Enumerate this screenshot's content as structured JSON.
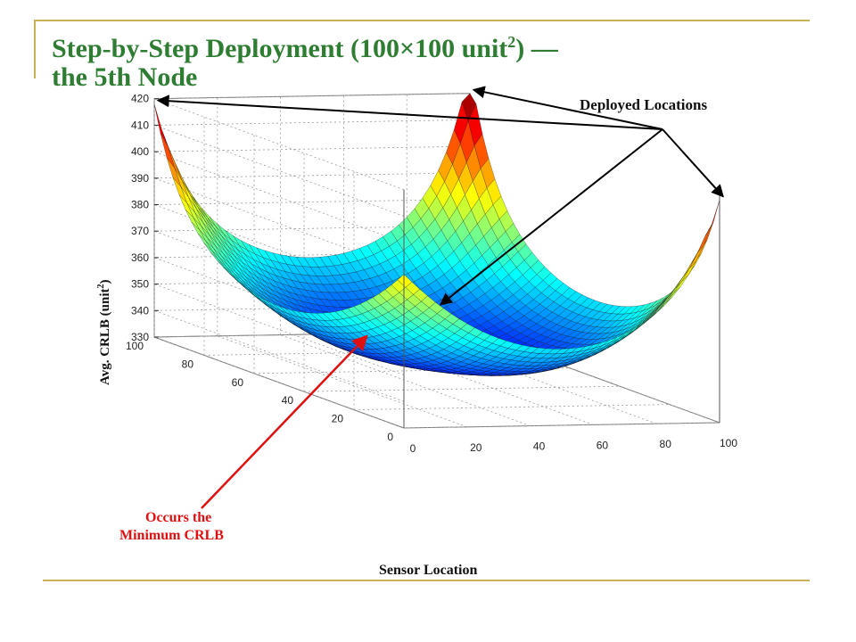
{
  "slide": {
    "title_line1": "Step-by-Step Deployment (100×100 unit",
    "title_sup": "2",
    "title_line1_end": ") —",
    "title_line2": "the 5th Node"
  },
  "annotations": {
    "deployed": "Deployed Locations",
    "minimum_line1": "Occurs the",
    "minimum_line2": "Minimum CRLB"
  },
  "colors": {
    "title": "#2e7d32",
    "arrow_black": "#000000",
    "arrow_red": "#e01010",
    "minimum_text": "#e01010",
    "rule": "#c9b15a"
  },
  "chart_data": {
    "type": "surface3d",
    "title": "",
    "xlabel": "Sensor Location",
    "ylabel": "",
    "zlabel_main": "Avg. CRLB (unit",
    "zlabel_sup": "2",
    "zlabel_end": ")",
    "xlim": [
      0,
      100
    ],
    "ylim": [
      0,
      100
    ],
    "zlim": [
      330,
      420
    ],
    "x_ticks": [
      "0",
      "20",
      "40",
      "60",
      "80",
      "100"
    ],
    "y_ticks": [
      "0",
      "20",
      "40",
      "60",
      "80",
      "100"
    ],
    "z_ticks": [
      "330",
      "340",
      "350",
      "360",
      "370",
      "380",
      "390",
      "400",
      "410",
      "420"
    ],
    "grid": true,
    "colormap": "jet",
    "deployed_peaks": [
      {
        "x": 0,
        "y": 100,
        "z": 408
      },
      {
        "x": 100,
        "y": 100,
        "z": 420
      },
      {
        "x": 100,
        "y": 0,
        "z": 404
      },
      {
        "x": 50,
        "y": 50,
        "z": 396
      }
    ],
    "base_value": 333,
    "corner_value": 388,
    "minimum_location": {
      "x": 50,
      "y": 78
    }
  }
}
